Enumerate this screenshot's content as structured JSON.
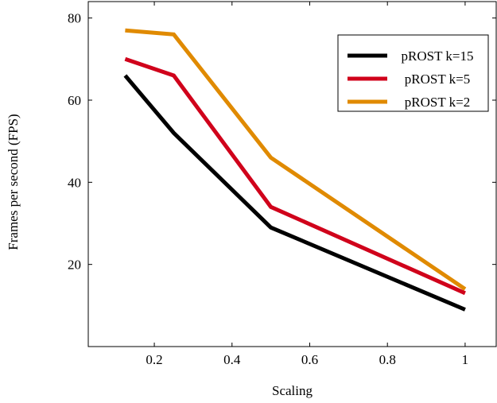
{
  "chart_data": {
    "type": "line",
    "xlabel": "Scaling",
    "ylabel": "Frames per second (FPS)",
    "xlim": [
      0.03,
      1.08
    ],
    "ylim": [
      0,
      84
    ],
    "xticks": [
      0.2,
      0.4,
      0.6,
      0.8,
      1
    ],
    "xtick_labels": [
      "0.2",
      "0.4",
      "0.6",
      "0.8",
      "1"
    ],
    "yticks": [
      20,
      40,
      60,
      80
    ],
    "ytick_labels": [
      "20",
      "40",
      "60",
      "80"
    ],
    "grid": false,
    "legend_position": "top-right",
    "series": [
      {
        "name": "pROST k=15",
        "color": "#000000",
        "x": [
          0.125,
          0.25,
          0.5,
          1
        ],
        "y": [
          66,
          52,
          29,
          9
        ]
      },
      {
        "name": "pROST k=5",
        "color": "#d0021b",
        "x": [
          0.125,
          0.25,
          0.5,
          1
        ],
        "y": [
          70,
          66,
          34,
          13
        ]
      },
      {
        "name": "pROST k=2",
        "color": "#e08a00",
        "x": [
          0.125,
          0.25,
          0.5,
          1
        ],
        "y": [
          77,
          76,
          46,
          14
        ]
      }
    ]
  }
}
